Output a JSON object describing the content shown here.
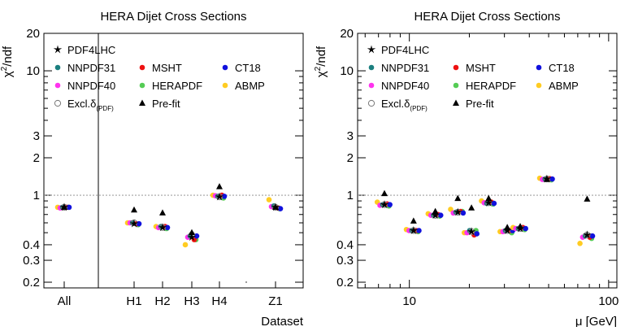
{
  "colors": {
    "PDF4LHC": "#000000",
    "NNPDF31": "#1b7f7f",
    "NNPDF40": "#ff33ee",
    "MSHT": "#ee1111",
    "HERAPDF": "#55cc55",
    "CT18": "#1111dd",
    "ABMP": "#ffcc22",
    "Excl": "#777777",
    "Prefit": "#000000"
  },
  "legend": {
    "items": [
      {
        "key": "PDF4LHC",
        "label": "PDF4LHC",
        "marker": "star"
      },
      {
        "key": "NNPDF31",
        "label": "NNPDF31",
        "marker": "dot"
      },
      {
        "key": "MSHT",
        "label": "MSHT",
        "marker": "dot"
      },
      {
        "key": "CT18",
        "label": "CT18",
        "marker": "dot"
      },
      {
        "key": "NNPDF40",
        "label": "NNPDF40",
        "marker": "dot"
      },
      {
        "key": "HERAPDF",
        "label": "HERAPDF",
        "marker": "dot"
      },
      {
        "key": "ABMP",
        "label": "ABMP",
        "marker": "dot"
      },
      {
        "key": "Excl",
        "label": "Excl.δ",
        "sub": "(PDF)",
        "marker": "ring"
      },
      {
        "key": "Prefit",
        "label": "Pre-fit",
        "marker": "triangle"
      }
    ]
  },
  "chart_data": [
    {
      "type": "scatter",
      "title": "HERA Dijet Cross Sections",
      "ylabel": "χ²/ndf",
      "xlabel": "Dataset",
      "ylog": true,
      "ylim": [
        0.18,
        20
      ],
      "yticks": [
        "0.2",
        "0.3",
        "0.4",
        "1",
        "2",
        "3",
        "10",
        "20"
      ],
      "reference_line": 1,
      "categories": [
        "All",
        "H1",
        "H2",
        "H3",
        "H4",
        "Z1"
      ],
      "points": {
        "PDF4LHC": [
          0.8,
          0.59,
          0.55,
          0.46,
          0.97,
          0.8
        ],
        "NNPDF31": [
          0.8,
          0.6,
          0.56,
          0.47,
          0.98,
          0.82
        ],
        "NNPDF40": [
          0.79,
          0.6,
          0.55,
          0.46,
          0.99,
          0.81
        ],
        "MSHT": [
          0.8,
          0.59,
          0.56,
          0.44,
          1.0,
          0.79
        ],
        "HERAPDF": [
          0.8,
          0.58,
          0.54,
          0.44,
          0.95,
          0.78
        ],
        "CT18": [
          0.8,
          0.59,
          0.55,
          0.47,
          0.98,
          0.78
        ],
        "ABMP": [
          0.8,
          0.6,
          0.56,
          0.4,
          1.0,
          0.92
        ],
        "Excl": [
          0.8,
          0.6,
          0.55,
          0.48,
          0.97,
          0.8
        ],
        "Prefit": [
          0.8,
          0.76,
          0.72,
          0.5,
          1.17,
          0.8
        ]
      }
    },
    {
      "type": "scatter",
      "title": "HERA Dijet Cross Sections",
      "ylabel": "χ²/ndf",
      "xlabel": "μ [GeV]",
      "xlog": true,
      "xlim": [
        5.5,
        110
      ],
      "xticks": [
        "10",
        "100"
      ],
      "ylog": true,
      "ylim": [
        0.18,
        20
      ],
      "yticks": [
        "0.2",
        "0.3",
        "0.4",
        "1",
        "2",
        "3",
        "10",
        "20"
      ],
      "reference_line": 1,
      "mu": [
        7.5,
        10.5,
        13.5,
        17.5,
        20.5,
        25,
        31,
        36,
        49,
        78
      ],
      "points": {
        "PDF4LHC": [
          0.84,
          0.52,
          0.69,
          0.73,
          0.51,
          0.87,
          0.52,
          0.54,
          1.35,
          0.48
        ],
        "NNPDF31": [
          0.84,
          0.52,
          0.69,
          0.73,
          0.52,
          0.86,
          0.52,
          0.54,
          1.35,
          0.47
        ],
        "NNPDF40": [
          0.83,
          0.52,
          0.69,
          0.72,
          0.5,
          0.87,
          0.51,
          0.54,
          1.34,
          0.46
        ],
        "MSHT": [
          0.85,
          0.52,
          0.7,
          0.74,
          0.48,
          0.88,
          0.52,
          0.55,
          1.36,
          0.46
        ],
        "HERAPDF": [
          0.82,
          0.51,
          0.68,
          0.74,
          0.52,
          0.85,
          0.5,
          0.53,
          1.33,
          0.45
        ],
        "CT18": [
          0.84,
          0.52,
          0.69,
          0.72,
          0.49,
          0.86,
          0.52,
          0.54,
          1.35,
          0.47
        ],
        "ABMP": [
          0.88,
          0.53,
          0.71,
          0.77,
          0.5,
          0.9,
          0.51,
          0.55,
          1.37,
          0.41
        ],
        "Excl": [
          0.84,
          0.52,
          0.69,
          0.73,
          0.51,
          0.87,
          0.52,
          0.54,
          1.35,
          0.48
        ],
        "Prefit": [
          1.03,
          0.62,
          0.74,
          0.94,
          0.79,
          0.94,
          0.55,
          0.56,
          1.34,
          0.93
        ]
      }
    }
  ]
}
